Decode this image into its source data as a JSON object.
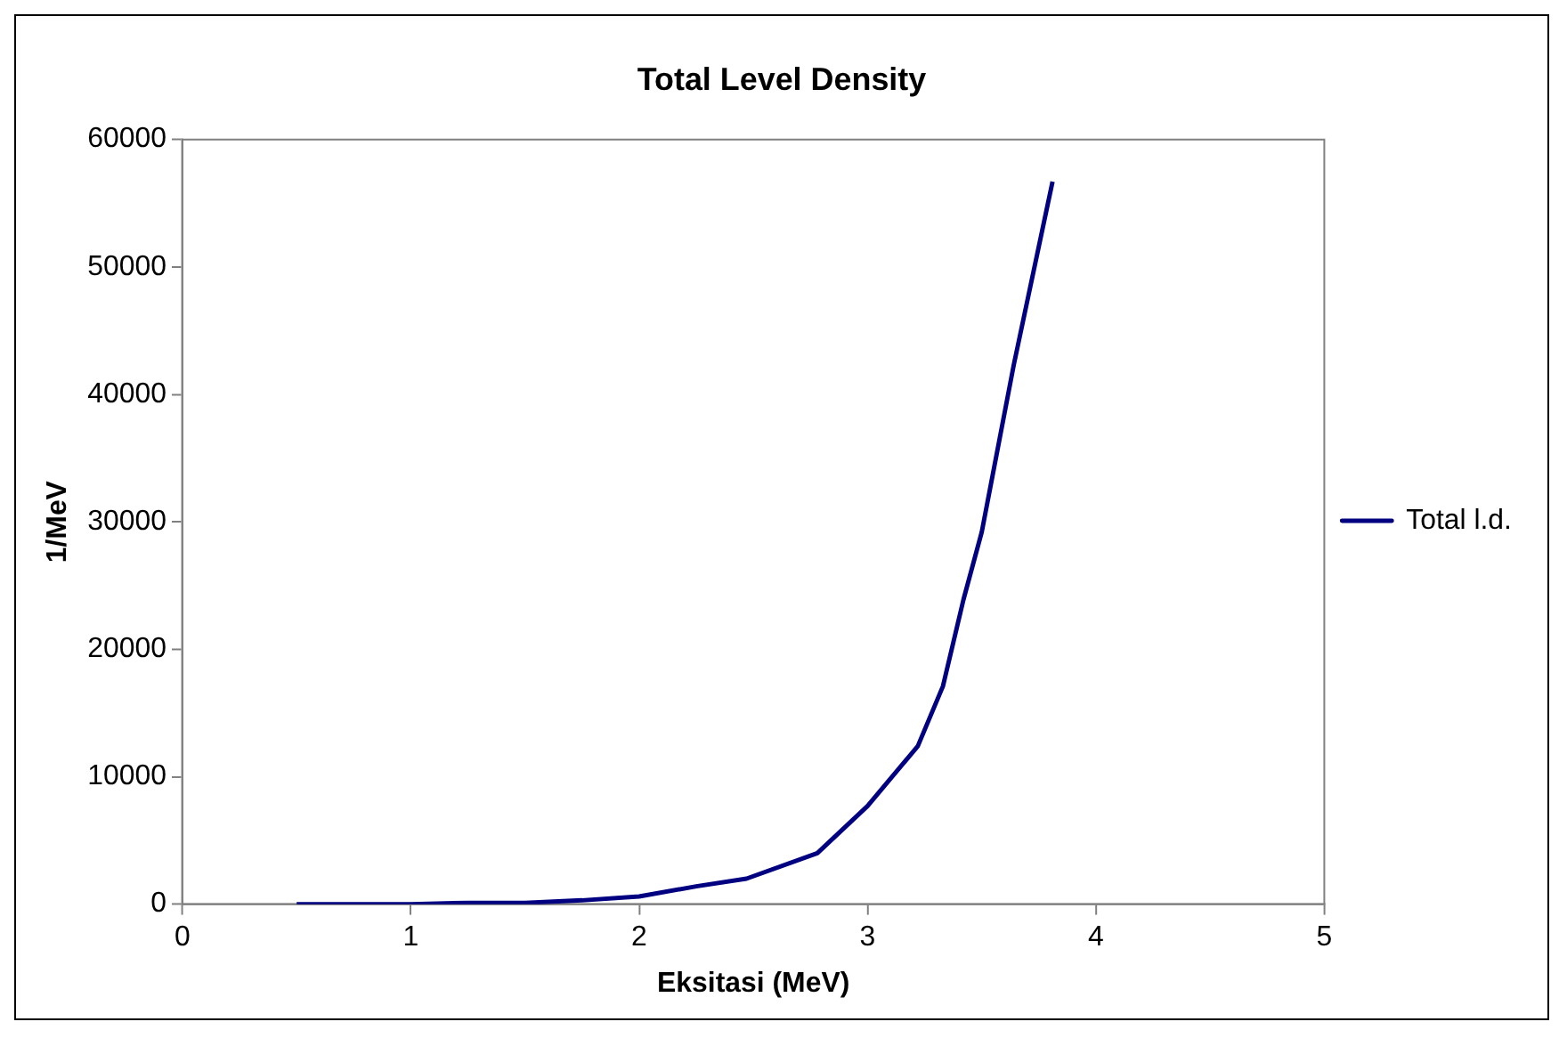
{
  "chart_data": {
    "type": "line",
    "title": "Total Level Density",
    "xlabel": "Eksitasi (MeV)",
    "ylabel": "1/MeV",
    "series": [
      {
        "name": "Total l.d.",
        "color": "#000080",
        "x": [
          0.5,
          1.0,
          1.25,
          1.5,
          1.75,
          2.0,
          2.25,
          2.47,
          2.78,
          3.0,
          3.22,
          3.33,
          3.42,
          3.5,
          3.64,
          3.81
        ],
        "values": [
          0,
          0,
          100,
          100,
          300,
          600,
          1400,
          2000,
          4000,
          7700,
          12400,
          17100,
          23900,
          29200,
          42300,
          56700
        ]
      }
    ],
    "xlim": [
      0,
      5
    ],
    "xticks": [
      0,
      1,
      2,
      3,
      4,
      5
    ],
    "ylim": [
      0,
      60000
    ],
    "yticks": [
      0,
      10000,
      20000,
      30000,
      40000,
      50000,
      60000
    ],
    "grid": false,
    "legend": "right",
    "marker": "none",
    "line_style": "solid"
  }
}
